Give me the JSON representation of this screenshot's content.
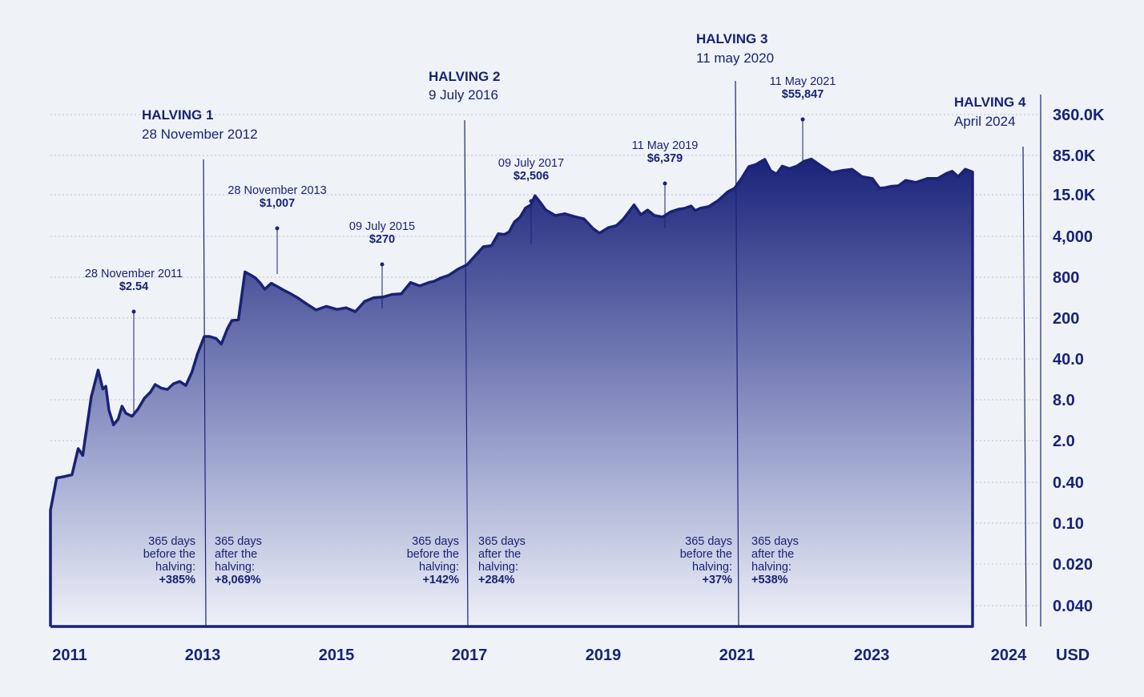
{
  "colors": {
    "background": "#eff3f7",
    "primary": "#1a2276",
    "area_top": "#1b237a",
    "area_bottom": "#eef1f8",
    "grid": "#b9c0dc"
  },
  "chart_data": {
    "type": "area",
    "title": "",
    "xlabel": "",
    "ylabel": "USD",
    "y_scale": "log",
    "grid": true,
    "x_tick_labels": [
      "2011",
      "2013",
      "2015",
      "2017",
      "2019",
      "2021",
      "2023",
      "2024"
    ],
    "y_tick_labels": [
      "360.0K",
      "85.0K",
      "15.0K",
      "4,000",
      "800",
      "200",
      "40.0",
      "8.0",
      "2.0",
      "0.40",
      "0.10",
      "0.020",
      "0.040"
    ],
    "series": [
      {
        "x": [
          2011.0,
          2011.08,
          2011.18,
          2011.28,
          2011.36,
          2011.42,
          2011.53,
          2011.62,
          2011.68,
          2011.72,
          2011.76,
          2011.82,
          2011.88,
          2011.93,
          2011.98,
          2012.06,
          2012.14,
          2012.22,
          2012.3,
          2012.36,
          2012.44,
          2012.52,
          2012.6,
          2012.68,
          2012.76,
          2012.84,
          2012.91,
          2013.0,
          2013.08,
          2013.18,
          2013.26,
          2013.35,
          2013.42,
          2013.52,
          2013.62,
          2013.7,
          2013.78,
          2013.86,
          2013.92,
          2014.02,
          2014.12,
          2014.2,
          2014.3,
          2014.42,
          2014.56,
          2014.7,
          2014.86,
          2015.02,
          2015.16,
          2015.3,
          2015.44,
          2015.58,
          2015.72,
          2015.86,
          2016.0,
          2016.14,
          2016.28,
          2016.42,
          2016.5,
          2016.6,
          2016.72,
          2016.86,
          2017.0,
          2017.12,
          2017.24,
          2017.36,
          2017.46,
          2017.55,
          2017.62,
          2017.7,
          2017.78,
          2017.86,
          2017.94,
          2018.0,
          2018.08,
          2018.16,
          2018.3,
          2018.44,
          2018.58,
          2018.72,
          2018.86,
          2018.95,
          2019.08,
          2019.2,
          2019.3,
          2019.38,
          2019.46,
          2019.56,
          2019.66,
          2019.76,
          2019.88,
          2020.0,
          2020.12,
          2020.2,
          2020.3,
          2020.36,
          2020.44,
          2020.56,
          2020.7,
          2020.84,
          2020.94,
          2021.04,
          2021.14,
          2021.24,
          2021.3,
          2021.36,
          2021.44,
          2021.52,
          2021.6,
          2021.7,
          2021.8,
          2021.9,
          2022.0,
          2022.14,
          2022.28,
          2022.42,
          2022.56,
          2022.7,
          2022.84,
          2022.94,
          2023.02,
          2023.1,
          2023.2,
          2023.3,
          2023.44,
          2023.6,
          2023.74,
          2023.86,
          2023.94,
          2024.02,
          2024.12,
          2024.22
        ],
        "values": [
          0.17,
          0.55,
          0.58,
          0.62,
          1.6,
          1.25,
          10.5,
          28.0,
          14.0,
          15.5,
          6.5,
          3.8,
          4.7,
          7.5,
          5.8,
          5.2,
          6.8,
          10.0,
          12.5,
          16.5,
          14.5,
          13.8,
          17.0,
          18.5,
          16.0,
          26.0,
          50.0,
          95.0,
          95.0,
          88.0,
          72.0,
          125.0,
          170.0,
          175.0,
          1000.0,
          900.0,
          800.0,
          650.0,
          530.0,
          660.0,
          580.0,
          520.0,
          460.0,
          390.0,
          310.0,
          250.0,
          285.0,
          255.0,
          270.0,
          235.0,
          340.0,
          390.0,
          400.0,
          440.0,
          450.0,
          680.0,
          600.0,
          680.0,
          710.0,
          800.0,
          880.0,
          1100.0,
          1300.0,
          1800.0,
          2500.0,
          2600.0,
          4000.0,
          3900.0,
          4300.0,
          6200.0,
          7300.0,
          10200.0,
          11500.0,
          16000.0,
          12500.0,
          9500.0,
          7800.0,
          8300.0,
          7500.0,
          6900.0,
          4800.0,
          4100.0,
          5000.0,
          5400.0,
          6800.0,
          8800.0,
          11500.0,
          8000.0,
          9500.0,
          7800.0,
          7400.0,
          8900.0,
          9800.0,
          10100.0,
          11000.0,
          9300.0,
          10200.0,
          10800.0,
          13500.0,
          18500.0,
          21000.0,
          30000.0,
          46000.0,
          50000.0,
          55000.0,
          60000.0,
          40000.0,
          35000.0,
          47000.0,
          43000.0,
          47000.0,
          56000.0,
          61000.0,
          47000.0,
          37000.0,
          40000.0,
          42000.0,
          32000.0,
          30000.0,
          21000.0,
          21500.0,
          22500.0,
          23000.0,
          28000.0,
          26000.0,
          30000.0,
          30000.0,
          36000.0,
          39000.0,
          32000.0,
          42000.0,
          38000.0
        ]
      }
    ],
    "halvings": [
      {
        "label": "HALVING 1",
        "date": "28 November 2012"
      },
      {
        "label": "HALVING 2",
        "date": "9 July 2016"
      },
      {
        "label": "HALVING 3",
        "date": "11 may 2020"
      },
      {
        "label": "HALVING 4",
        "date": "April 2024"
      }
    ],
    "annotations": [
      {
        "date": "28 November 2011",
        "price": "$2.54"
      },
      {
        "date": "28 November 2013",
        "price": "$1,007"
      },
      {
        "date": "09 July 2015",
        "price": "$270"
      },
      {
        "date": "09 July 2017",
        "price": "$2,506"
      },
      {
        "date": "11 May 2019",
        "price": "$6,379"
      },
      {
        "date": "11 May 2021",
        "price": "$55,847"
      }
    ],
    "halving_returns": [
      {
        "lines": [
          "365 days",
          "before the",
          "halving:"
        ],
        "value": "+385%"
      },
      {
        "lines": [
          "365 days",
          "after the",
          "halving:"
        ],
        "value": "+8,069%"
      },
      {
        "lines": [
          "365 days",
          "before the",
          "halving:"
        ],
        "value": "+142%"
      },
      {
        "lines": [
          "365 days",
          "after the",
          "halving:"
        ],
        "value": "+284%"
      },
      {
        "lines": [
          "365 days",
          "before the",
          "halving:"
        ],
        "value": "+37%"
      },
      {
        "lines": [
          "365 days",
          "after the",
          "halving:"
        ],
        "value": "+538%"
      }
    ]
  }
}
